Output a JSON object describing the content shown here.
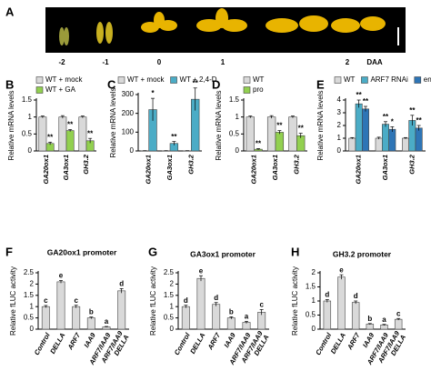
{
  "figure": {
    "panel_labels": [
      "A",
      "B",
      "C",
      "D",
      "E",
      "F",
      "G",
      "H"
    ],
    "photo": {
      "labels": [
        "-2",
        "-1",
        "0",
        "1",
        "2",
        "DAA"
      ]
    }
  },
  "chart_data": [
    {
      "type": "bar",
      "y_label": "Relative mRNA levels",
      "categories": [
        "GA20ox1",
        "GA3ox1",
        "GH3.2"
      ],
      "series": [
        {
          "name": "WT + mock",
          "color": "#d9d9d9",
          "values": [
            1,
            1,
            1
          ],
          "errors": [
            0.03,
            0.04,
            0.03
          ]
        },
        {
          "name": "WT + GA",
          "color": "#92d050",
          "values": [
            0.22,
            0.6,
            0.3
          ],
          "errors": [
            0.04,
            0.03,
            0.07
          ],
          "annotations": [
            "**",
            "**",
            "**"
          ]
        }
      ],
      "ylim": [
        0,
        1.5
      ],
      "yticks": [
        0,
        0.5,
        1,
        1.5
      ]
    },
    {
      "type": "bar",
      "y_label": "Relative mRNA levels",
      "categories": [
        "GA20ox1",
        "GA3ox1",
        "GH3.2"
      ],
      "series": [
        {
          "name": "WT + mock",
          "color": "#d9d9d9",
          "values": [
            1,
            1,
            1
          ],
          "errors": [
            0.5,
            0.5,
            0.5
          ]
        },
        {
          "name": "WT + 2,4-D",
          "color": "#4bacc6",
          "values": [
            220,
            40,
            275
          ],
          "errors": [
            60,
            10,
            60
          ],
          "annotations": [
            "*",
            "**",
            "**"
          ]
        }
      ],
      "ylim": [
        0,
        300
      ],
      "yticks": [
        0,
        100,
        200,
        300
      ]
    },
    {
      "type": "bar",
      "y_label": "Relative mRNA levels",
      "categories": [
        "GA20ox1",
        "GA3ox1",
        "GH3.2"
      ],
      "series": [
        {
          "name": "WT",
          "color": "#d9d9d9",
          "values": [
            1,
            1,
            1
          ],
          "errors": [
            0.03,
            0.04,
            0.03
          ]
        },
        {
          "name": "pro",
          "color": "#92d050",
          "values": [
            0.05,
            0.55,
            0.45
          ],
          "errors": [
            0.02,
            0.05,
            0.07
          ],
          "annotations": [
            "**",
            "**",
            "**"
          ]
        }
      ],
      "ylim": [
        0,
        1.5
      ],
      "yticks": [
        0,
        0.5,
        1,
        1.5
      ]
    },
    {
      "type": "bar",
      "y_label": "Relative mRNA levels",
      "categories": [
        "GA20ox1",
        "GA3ox1",
        "GH3.2"
      ],
      "series": [
        {
          "name": "WT",
          "color": "#d9d9d9",
          "values": [
            1,
            1,
            1
          ],
          "errors": [
            0.05,
            0.08,
            0.05
          ]
        },
        {
          "name": "ARF7 RNAi",
          "color": "#4bacc6",
          "values": [
            3.7,
            2.1,
            2.4
          ],
          "errors": [
            0.3,
            0.2,
            0.4
          ],
          "annotations": [
            "**",
            "**",
            "**"
          ]
        },
        {
          "name": "entire",
          "color": "#2e75b6",
          "values": [
            3.3,
            1.7,
            1.8
          ],
          "errors": [
            0.2,
            0.2,
            0.2
          ],
          "annotations": [
            "**",
            "*",
            "**"
          ]
        }
      ],
      "ylim": [
        0,
        4
      ],
      "yticks": [
        0,
        1,
        2,
        3,
        4
      ]
    },
    {
      "type": "bar",
      "title": "GA20ox1 promoter",
      "y_label": "Relative fLUC activity",
      "categories": [
        "Control",
        "DELLA",
        "ARF7",
        "IAA9",
        "ARF7/IAA9",
        "ARF7/IAA9 DELLA"
      ],
      "color": "#d9d9d9",
      "values": [
        1,
        2.1,
        1.0,
        0.5,
        0.1,
        1.7
      ],
      "errors": [
        0.05,
        0.06,
        0.06,
        0.04,
        0.02,
        0.1
      ],
      "annotations": [
        "c",
        "e",
        "c",
        "b",
        "a",
        "d"
      ],
      "ylim": [
        0,
        2.5
      ],
      "yticks": [
        0,
        0.5,
        1,
        1.5,
        2,
        2.5
      ]
    },
    {
      "type": "bar",
      "title": "GA3ox1 promoter",
      "y_label": "Relative fLUC activity",
      "categories": [
        "Control",
        "DELLA",
        "ARF7",
        "IAA9",
        "ARF7/IAA9",
        "ARF7/IAA9 DELLA"
      ],
      "color": "#d9d9d9",
      "values": [
        1,
        2.25,
        1.1,
        0.5,
        0.3,
        0.75
      ],
      "errors": [
        0.06,
        0.12,
        0.08,
        0.05,
        0.05,
        0.12
      ],
      "annotations": [
        "d",
        "e",
        "d",
        "b",
        "a",
        "c"
      ],
      "ylim": [
        0,
        2.5
      ],
      "yticks": [
        0,
        0.5,
        1,
        1.5,
        2,
        2.5
      ]
    },
    {
      "type": "bar",
      "title": "GH3.2 promoter",
      "y_label": "Relative fLUC activity",
      "categories": [
        "Control",
        "DELLA",
        "ARF7",
        "IAA9",
        "ARF7/IAA9",
        "ARF7/IAA9 DELLA"
      ],
      "color": "#d9d9d9",
      "values": [
        1,
        1.85,
        0.95,
        0.18,
        0.15,
        0.35
      ],
      "errors": [
        0.05,
        0.08,
        0.05,
        0.02,
        0.02,
        0.03
      ],
      "annotations": [
        "d",
        "e",
        "d",
        "b",
        "a",
        "c"
      ],
      "ylim": [
        0,
        2
      ],
      "yticks": [
        0,
        0.5,
        1,
        1.5,
        2
      ]
    }
  ]
}
